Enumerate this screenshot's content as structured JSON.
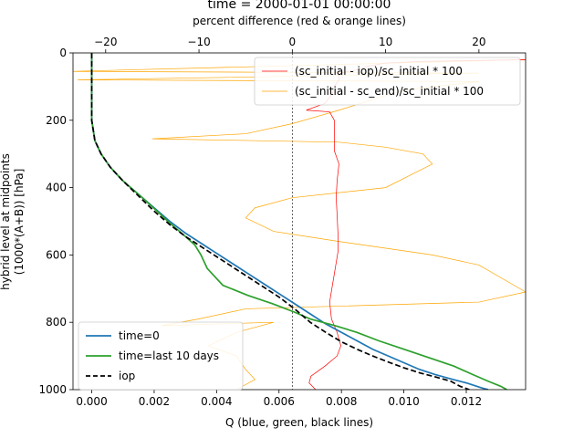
{
  "chart_data": {
    "type": "line",
    "title": "time = 2000-01-01 00:00:00",
    "xlabel": "Q (blue, green, black lines)",
    "x2label": "percent difference (red & orange lines)",
    "ylabel_line1": "hybrid level at midpoints",
    "ylabel_line2": "(1000*(A+B)) [hPa]",
    "xlim": [
      -0.0006,
      0.0139
    ],
    "x2lim": [
      -23.5,
      25
    ],
    "ylim": [
      1000,
      0
    ],
    "x_ticks": [
      0.0,
      0.002,
      0.004,
      0.006,
      0.008,
      0.01,
      0.012
    ],
    "x_tick_labels": [
      "0.000",
      "0.002",
      "0.004",
      "0.006",
      "0.008",
      "0.010",
      "0.012"
    ],
    "x2_ticks": [
      -20,
      -10,
      0,
      10,
      20
    ],
    "x2_tick_labels": [
      "−20",
      "−10",
      "0",
      "10",
      "20"
    ],
    "y_ticks": [
      0,
      200,
      400,
      600,
      800,
      1000
    ],
    "y_tick_labels": [
      "0",
      "200",
      "400",
      "600",
      "800",
      "1000"
    ],
    "zero_line_x2": 0,
    "series": [
      {
        "name": "time=0",
        "axis": "bottom",
        "color": "#1f77b4",
        "dash": "solid",
        "points": [
          [
            0.0,
            0
          ],
          [
            0.0,
            100
          ],
          [
            0.0,
            200
          ],
          [
            0.0001,
            260
          ],
          [
            0.0003,
            300
          ],
          [
            0.0006,
            340
          ],
          [
            0.001,
            380
          ],
          [
            0.0015,
            420
          ],
          [
            0.002,
            460
          ],
          [
            0.0025,
            500
          ],
          [
            0.003,
            535
          ],
          [
            0.0035,
            565
          ],
          [
            0.004,
            595
          ],
          [
            0.0045,
            625
          ],
          [
            0.005,
            655
          ],
          [
            0.0055,
            685
          ],
          [
            0.006,
            715
          ],
          [
            0.0065,
            745
          ],
          [
            0.007,
            775
          ],
          [
            0.0075,
            805
          ],
          [
            0.008,
            830
          ],
          [
            0.0085,
            855
          ],
          [
            0.009,
            880
          ],
          [
            0.0095,
            900
          ],
          [
            0.01,
            920
          ],
          [
            0.0105,
            940
          ],
          [
            0.011,
            955
          ],
          [
            0.0115,
            968
          ],
          [
            0.012,
            980
          ],
          [
            0.0125,
            995
          ],
          [
            0.0127,
            1000
          ]
        ]
      },
      {
        "name": "time=last 10 days",
        "axis": "bottom",
        "color": "#2ca02c",
        "dash": "solid",
        "points": [
          [
            0.0,
            0
          ],
          [
            0.0,
            100
          ],
          [
            0.0,
            200
          ],
          [
            0.0001,
            260
          ],
          [
            0.0003,
            300
          ],
          [
            0.0006,
            340
          ],
          [
            0.001,
            380
          ],
          [
            0.0015,
            420
          ],
          [
            0.002,
            462
          ],
          [
            0.0025,
            505
          ],
          [
            0.003,
            545
          ],
          [
            0.0033,
            570
          ],
          [
            0.0035,
            600
          ],
          [
            0.0037,
            640
          ],
          [
            0.0042,
            690
          ],
          [
            0.005,
            720
          ],
          [
            0.0058,
            745
          ],
          [
            0.0065,
            770
          ],
          [
            0.007,
            790
          ],
          [
            0.0078,
            810
          ],
          [
            0.0085,
            830
          ],
          [
            0.0092,
            855
          ],
          [
            0.01,
            880
          ],
          [
            0.0108,
            905
          ],
          [
            0.0116,
            930
          ],
          [
            0.0122,
            955
          ],
          [
            0.0127,
            975
          ],
          [
            0.0131,
            990
          ],
          [
            0.0133,
            1000
          ]
        ]
      },
      {
        "name": "iop",
        "axis": "bottom",
        "color": "#000000",
        "dash": "dashed",
        "points": [
          [
            0.0,
            0
          ],
          [
            0.0,
            100
          ],
          [
            0.0,
            200
          ],
          [
            0.0001,
            260
          ],
          [
            0.0003,
            300
          ],
          [
            0.0006,
            340
          ],
          [
            0.001,
            380
          ],
          [
            0.0015,
            425
          ],
          [
            0.002,
            470
          ],
          [
            0.0025,
            510
          ],
          [
            0.003,
            545
          ],
          [
            0.0035,
            575
          ],
          [
            0.004,
            605
          ],
          [
            0.0045,
            635
          ],
          [
            0.005,
            665
          ],
          [
            0.0055,
            695
          ],
          [
            0.006,
            725
          ],
          [
            0.0065,
            760
          ],
          [
            0.007,
            800
          ],
          [
            0.0075,
            830
          ],
          [
            0.008,
            858
          ],
          [
            0.0085,
            880
          ],
          [
            0.009,
            900
          ],
          [
            0.0095,
            918
          ],
          [
            0.01,
            935
          ],
          [
            0.0105,
            950
          ],
          [
            0.011,
            962
          ],
          [
            0.0115,
            975
          ],
          [
            0.0118,
            990
          ],
          [
            0.0121,
            1000
          ]
        ]
      },
      {
        "name": "(sc_initial - iop)/sc_initial * 100",
        "axis": "top",
        "color": "#ff0000",
        "dash": "solid",
        "points": [
          [
            25,
            20
          ],
          [
            14,
            25
          ],
          [
            10,
            30
          ],
          [
            8,
            40
          ],
          [
            7,
            50
          ],
          [
            5,
            60
          ],
          [
            5,
            80
          ],
          [
            4.5,
            100
          ],
          [
            4.3,
            120
          ],
          [
            3.5,
            150
          ],
          [
            1.5,
            170
          ],
          [
            4,
            175
          ],
          [
            4.5,
            200
          ],
          [
            4.5,
            240
          ],
          [
            4.5,
            290
          ],
          [
            5,
            330
          ],
          [
            4.8,
            380
          ],
          [
            4.7,
            430
          ],
          [
            4.8,
            480
          ],
          [
            4.9,
            540
          ],
          [
            4.9,
            590
          ],
          [
            4.6,
            640
          ],
          [
            4.3,
            690
          ],
          [
            4.0,
            740
          ],
          [
            4.2,
            790
          ],
          [
            4.8,
            830
          ],
          [
            5.2,
            870
          ],
          [
            4.8,
            900
          ],
          [
            3.5,
            930
          ],
          [
            2,
            960
          ],
          [
            1.8,
            980
          ],
          [
            2.5,
            1000
          ]
        ]
      },
      {
        "name": "(sc_initial - sc_end)/sc_initial * 100",
        "axis": "top",
        "color": "#ffa500",
        "dash": "solid",
        "points": [
          [
            25,
            20
          ],
          [
            -24,
            55
          ],
          [
            20,
            60
          ],
          [
            -23,
            80
          ],
          [
            20,
            85
          ],
          [
            12,
            110
          ],
          [
            5,
            170
          ],
          [
            0,
            210
          ],
          [
            -5,
            240
          ],
          [
            -15,
            255
          ],
          [
            -5,
            260
          ],
          [
            5,
            265
          ],
          [
            10,
            280
          ],
          [
            14,
            300
          ],
          [
            15,
            330
          ],
          [
            10,
            400
          ],
          [
            0,
            430
          ],
          [
            -4,
            460
          ],
          [
            -5,
            490
          ],
          [
            -2,
            530
          ],
          [
            5,
            560
          ],
          [
            10,
            580
          ],
          [
            15,
            600
          ],
          [
            20,
            630
          ],
          [
            25,
            710
          ],
          [
            20,
            740
          ],
          [
            -5,
            760
          ],
          [
            -10,
            790
          ],
          [
            -14,
            810
          ],
          [
            -2,
            800
          ],
          [
            -6,
            830
          ],
          [
            -9,
            870
          ],
          [
            -6,
            900
          ],
          [
            -5,
            940
          ],
          [
            -4,
            970
          ],
          [
            -6,
            1000
          ]
        ]
      }
    ],
    "legend_top_right": [
      "(sc_initial - iop)/sc_initial * 100",
      "(sc_initial - sc_end)/sc_initial * 100"
    ],
    "legend_bottom_left": [
      "time=0",
      "time=last 10 days",
      "iop"
    ]
  }
}
